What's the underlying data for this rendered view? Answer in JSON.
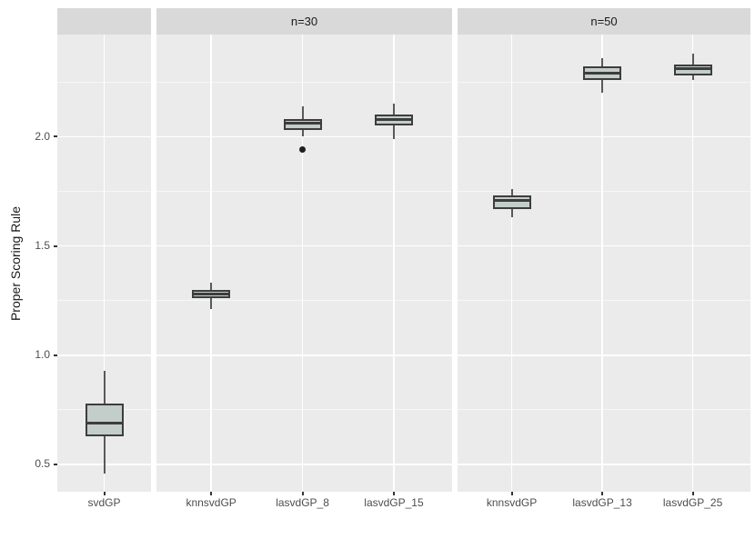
{
  "chart_data": {
    "type": "boxplot",
    "title": "",
    "ylabel": "Proper Scoring Rule",
    "xlabel": "",
    "y_ticks": [
      0.5,
      1.0,
      1.5,
      2.0
    ],
    "y_tick_labels": [
      "0.5",
      "1.0",
      "1.5",
      "2.0"
    ],
    "y_minor_ticks": [
      0.75,
      1.25,
      1.75,
      2.25
    ],
    "ylim": [
      0.375,
      2.467
    ],
    "legend": "none",
    "grid": "on",
    "panels": [
      {
        "strip_label": "",
        "categories": [
          "svdGP"
        ],
        "boxes": [
          {
            "category": "svdGP",
            "whisker_low": 0.46,
            "q1": 0.63,
            "median": 0.69,
            "q3": 0.78,
            "whisker_high": 0.93,
            "outliers": []
          }
        ]
      },
      {
        "strip_label": "n=30",
        "categories": [
          "knnsvdGP",
          "lasvdGP_8",
          "lasvdGP_15"
        ],
        "boxes": [
          {
            "category": "knnsvdGP",
            "whisker_low": 1.21,
            "q1": 1.26,
            "median": 1.28,
            "q3": 1.3,
            "whisker_high": 1.33,
            "outliers": []
          },
          {
            "category": "lasvdGP_8",
            "whisker_low": 2.0,
            "q1": 2.03,
            "median": 2.06,
            "q3": 2.08,
            "whisker_high": 2.14,
            "outliers": [
              1.94
            ]
          },
          {
            "category": "lasvdGP_15",
            "whisker_low": 1.99,
            "q1": 2.05,
            "median": 2.08,
            "q3": 2.1,
            "whisker_high": 2.15,
            "outliers": []
          }
        ]
      },
      {
        "strip_label": "n=50",
        "categories": [
          "knnsvdGP",
          "lasvdGP_13",
          "lasvdGP_25"
        ],
        "boxes": [
          {
            "category": "knnsvdGP",
            "whisker_low": 1.63,
            "q1": 1.67,
            "median": 1.71,
            "q3": 1.73,
            "whisker_high": 1.76,
            "outliers": []
          },
          {
            "category": "lasvdGP_13",
            "whisker_low": 2.2,
            "q1": 2.26,
            "median": 2.29,
            "q3": 2.32,
            "whisker_high": 2.36,
            "outliers": []
          },
          {
            "category": "lasvdGP_25",
            "whisker_low": 2.26,
            "q1": 2.28,
            "median": 2.31,
            "q3": 2.33,
            "whisker_high": 2.38,
            "outliers": []
          }
        ]
      }
    ],
    "colors": {
      "panel_background": "#EBEBEB",
      "strip_background": "#D9D9D9",
      "gridline": "#FFFFFF",
      "box_fill": "#C3CDCA",
      "box_border": "#3D3D3D",
      "whisker": "#595959",
      "outlier": "#1F1F1F",
      "tick_label": "#4D4D4D",
      "strip_text": "#1A1A1A",
      "axis_title": "#1A1A1A"
    }
  }
}
